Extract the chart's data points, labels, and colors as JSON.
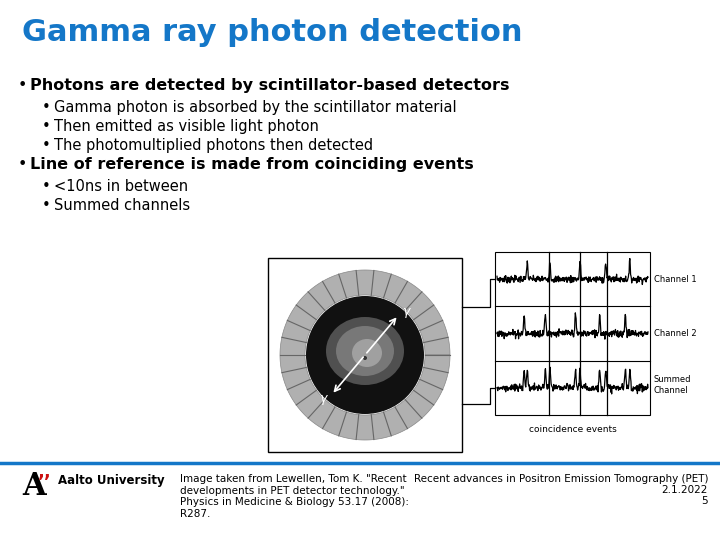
{
  "title": "Gamma ray photon detection",
  "title_color": "#1477c8",
  "title_fontsize": 22,
  "bg_color": "#ffffff",
  "bullet1_bold": "Photons are detected by scintillator-based detectors",
  "sub_bullets1": [
    "Gamma photon is absorbed by the scintillator material",
    "Then emitted as visible light photon",
    "The photomultiplied photons then detected"
  ],
  "bullet2_bold": "Line of reference is made from coinciding events",
  "sub_bullets2": [
    "<10ns in between",
    "Summed channels"
  ],
  "footer_left_title": "Aalto University",
  "footer_citation": "Image taken from Lewellen, Tom K. \"Recent\ndevelopments in PET detector technology.\"\nPhysics in Medicine & Biology 53.17 (2008):\nR287.",
  "footer_right_line1": "Recent advances in Positron Emission Tomography (PET)",
  "footer_right_line2": "2.1.2022",
  "footer_right_line3": "5",
  "separator_color": "#1477c8",
  "text_color": "#000000",
  "body_fontsize": 11.5,
  "sub_fontsize": 10.5,
  "footer_fontsize": 7.5
}
